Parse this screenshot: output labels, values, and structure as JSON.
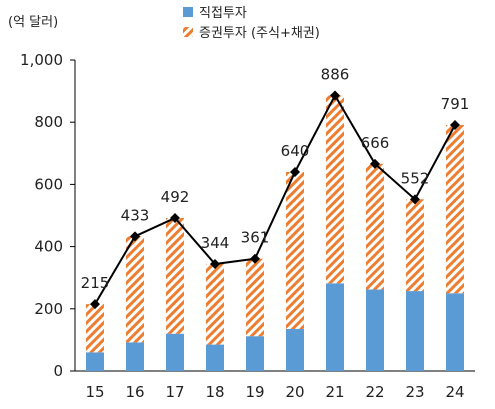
{
  "chart_data": {
    "type": "bar",
    "stacked": true,
    "unit_label": "(억 달러)",
    "categories": [
      "15",
      "16",
      "17",
      "18",
      "19",
      "20",
      "21",
      "22",
      "23",
      "24"
    ],
    "series": [
      {
        "name": "직접투자",
        "values": [
          60,
          92,
          120,
          85,
          112,
          135,
          282,
          262,
          257,
          250
        ],
        "color": "#5b9bd5"
      },
      {
        "name": "증권투자 (주식+채권)",
        "values": [
          155,
          341,
          372,
          259,
          249,
          505,
          604,
          404,
          295,
          541
        ],
        "color": "#ed7d31"
      }
    ],
    "total_line": {
      "values": [
        215,
        433,
        492,
        344,
        361,
        640,
        886,
        666,
        552,
        791
      ],
      "labels": [
        "215",
        "433",
        "492",
        "344",
        "361",
        "640",
        "886",
        "666",
        "552",
        "791"
      ],
      "color": "#000000"
    },
    "ylim": [
      0,
      1000
    ],
    "yticks": [
      0,
      200,
      400,
      600,
      800,
      1000
    ],
    "ytick_labels": [
      "0",
      "200",
      "400",
      "600",
      "800",
      "1,000"
    ],
    "legend_position": "top-center",
    "grid": false
  }
}
